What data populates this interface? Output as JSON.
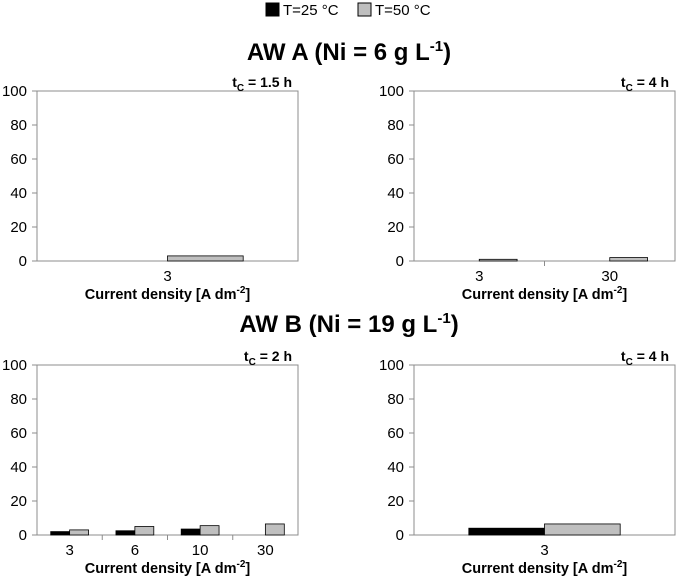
{
  "legend": {
    "items": [
      {
        "label": "T=25 °C",
        "color": "#000000"
      },
      {
        "label": "T=50 °C",
        "color": "#bfbfbf"
      }
    ]
  },
  "sections": [
    {
      "main": "AW A (Ni = 6 g L",
      "sup": "-1",
      "close": ")"
    },
    {
      "main": "AW B (Ni = 19 g L",
      "sup": "-1",
      "close": ")"
    }
  ],
  "chart_data": [
    {
      "type": "bar",
      "panel_label": {
        "main": "t",
        "sub": "C",
        "rest": " = 1.5 h"
      },
      "xlabel": {
        "main": "Current density [A dm",
        "sup": "-2",
        "close": "]"
      },
      "ylim": [
        0,
        100
      ],
      "yticks": [
        0,
        20,
        40,
        60,
        80,
        100
      ],
      "categories": [
        "3"
      ],
      "series": [
        {
          "name": "T=25 °C",
          "color": "#000000",
          "values": [
            0
          ]
        },
        {
          "name": "T=50 °C",
          "color": "#bfbfbf",
          "values": [
            3
          ]
        }
      ]
    },
    {
      "type": "bar",
      "panel_label": {
        "main": "t",
        "sub": "C",
        "rest": " = 4 h"
      },
      "xlabel": {
        "main": "Current density [A dm",
        "sup": "-2",
        "close": "]"
      },
      "ylim": [
        0,
        100
      ],
      "yticks": [
        0,
        20,
        40,
        60,
        80,
        100
      ],
      "categories": [
        "3",
        "30"
      ],
      "series": [
        {
          "name": "T=25 °C",
          "color": "#000000",
          "values": [
            0,
            0
          ]
        },
        {
          "name": "T=50 °C",
          "color": "#bfbfbf",
          "values": [
            1,
            2
          ]
        }
      ]
    },
    {
      "type": "bar",
      "panel_label": {
        "main": "t",
        "sub": "C",
        "rest": " = 2 h"
      },
      "xlabel": {
        "main": "Current density [A dm",
        "sup": "-2",
        "close": "]"
      },
      "ylim": [
        0,
        100
      ],
      "yticks": [
        0,
        20,
        40,
        60,
        80,
        100
      ],
      "categories": [
        "3",
        "6",
        "10",
        "30"
      ],
      "series": [
        {
          "name": "T=25 °C",
          "color": "#000000",
          "values": [
            2,
            2.5,
            3.5,
            0
          ]
        },
        {
          "name": "T=50 °C",
          "color": "#bfbfbf",
          "values": [
            3,
            5,
            5.5,
            6.5
          ]
        }
      ]
    },
    {
      "type": "bar",
      "panel_label": {
        "main": "t",
        "sub": "C",
        "rest": " = 4 h"
      },
      "xlabel": {
        "main": "Current density [A dm",
        "sup": "-2",
        "close": "]"
      },
      "ylim": [
        0,
        100
      ],
      "yticks": [
        0,
        20,
        40,
        60,
        80,
        100
      ],
      "categories": [
        "3"
      ],
      "series": [
        {
          "name": "T=25 °C",
          "color": "#000000",
          "values": [
            4
          ]
        },
        {
          "name": "T=50 °C",
          "color": "#bfbfbf",
          "values": [
            6.5
          ]
        }
      ]
    }
  ]
}
